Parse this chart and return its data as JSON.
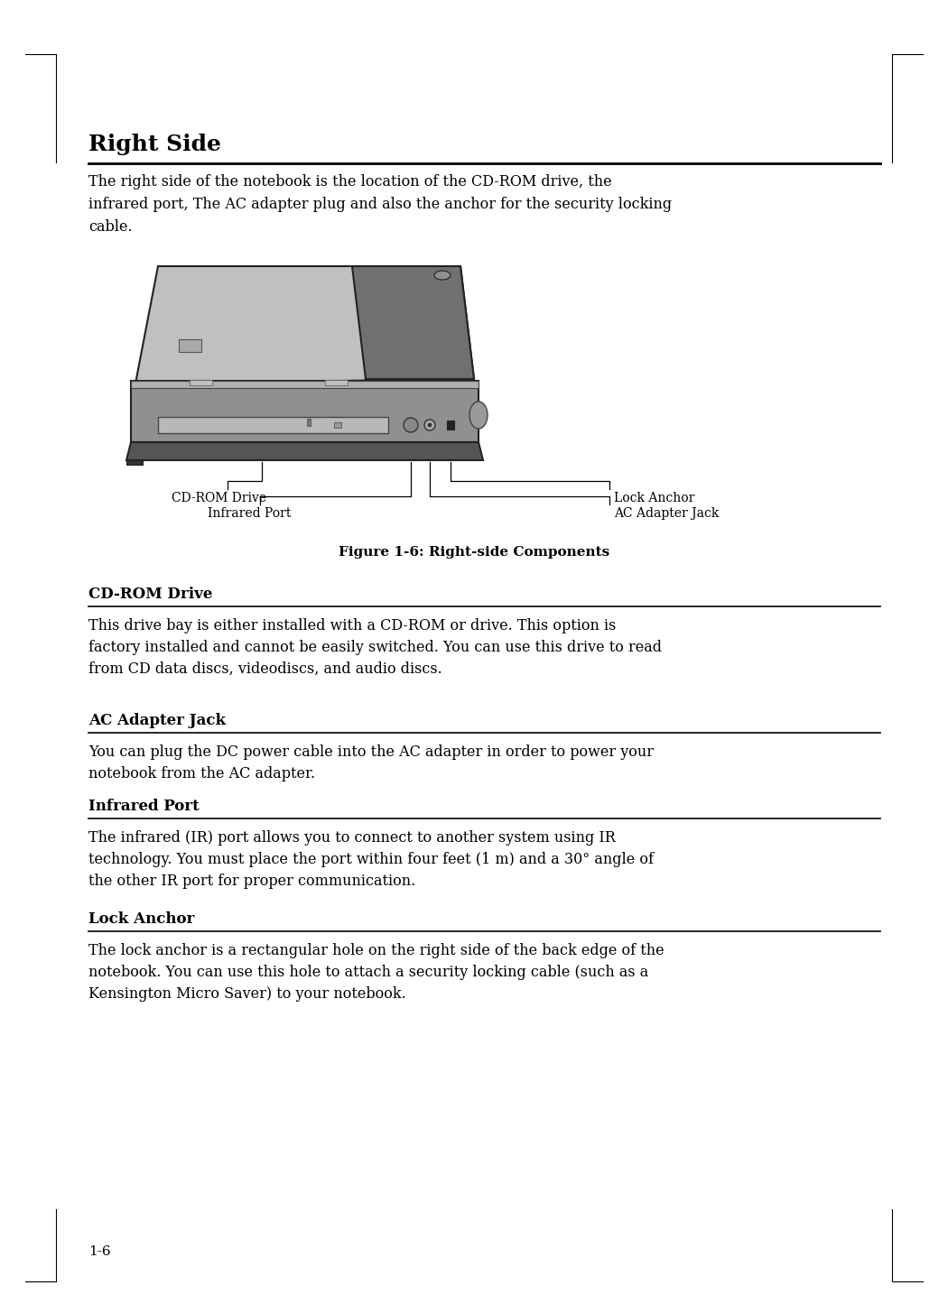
{
  "bg_color": "#ffffff",
  "title": "Right Side",
  "title_fontsize": 18,
  "intro_text": "The right side of the notebook is the location of the CD-ROM drive, the\ninfrared port, The AC adapter plug and also the anchor for the security locking\ncable.",
  "intro_fontsize": 11.5,
  "figure_caption": "Figure 1-6: Right-side Components",
  "sections": [
    {
      "heading": "CD-ROM Drive",
      "body": "This drive bay is either installed with a CD-ROM or drive. This option is\nfactory installed and cannot be easily switched. You can use this drive to read\nfrom CD data discs, videodiscs, and audio discs."
    },
    {
      "heading": "AC Adapter Jack",
      "body": "You can plug the DC power cable into the AC adapter in order to power your\nnotebook from the AC adapter."
    },
    {
      "heading": "Infrared Port",
      "body": "The infrared (IR) port allows you to connect to another system using IR\ntechnology. You must place the port within four feet (1 m) and a 30° angle of\nthe other IR port for proper communication."
    },
    {
      "heading": "Lock Anchor",
      "body": "The lock anchor is a rectangular hole on the right side of the back edge of the\nnotebook. You can use this hole to attach a security locking cable (such as a\nKensington Micro Saver) to your notebook."
    }
  ],
  "page_number": "1-6",
  "label_fontsize": 10,
  "body_fontsize": 11.5,
  "heading_fontsize": 12
}
